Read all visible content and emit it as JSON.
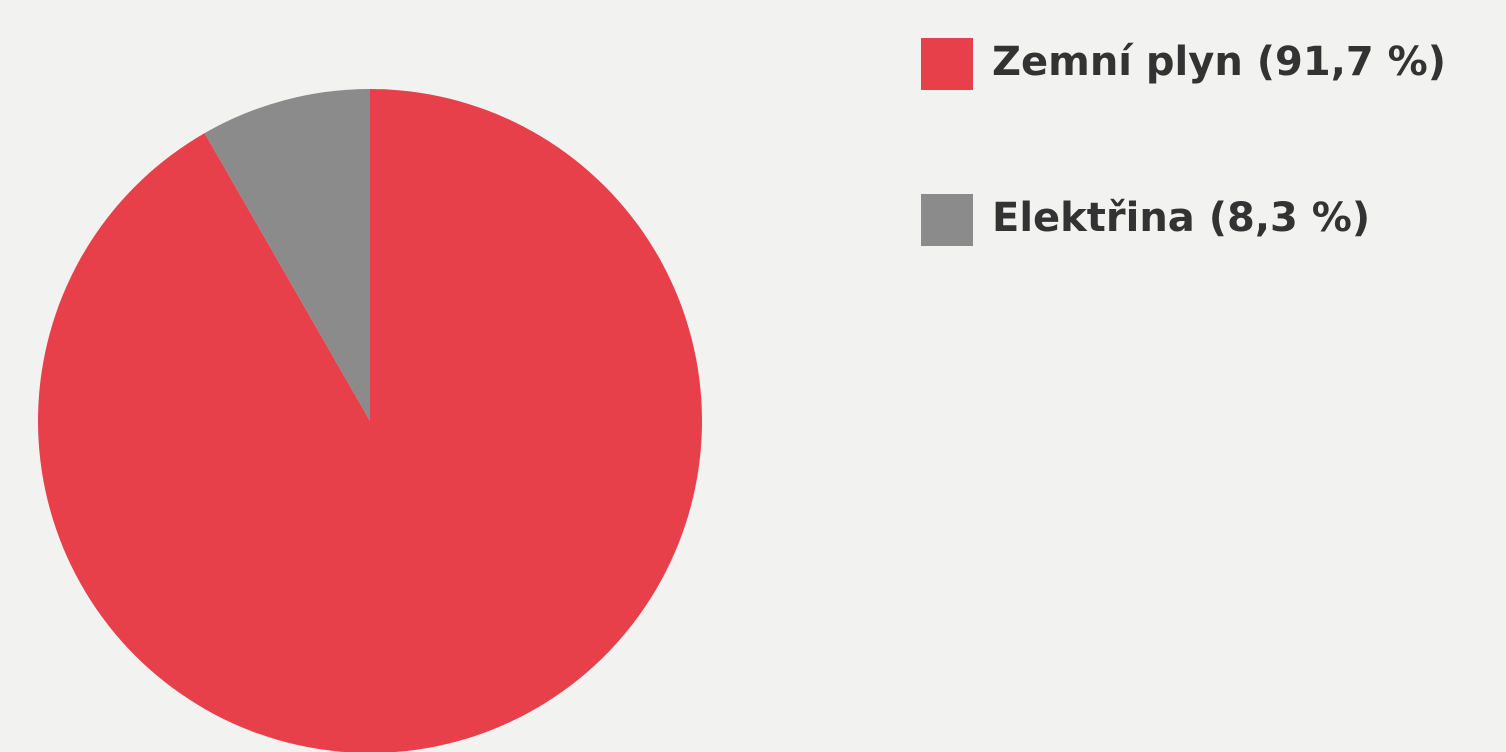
{
  "chart_data": {
    "type": "pie",
    "categories": [
      "Zemní plyn (91,7 %)",
      "Elektřina (8,3 %)"
    ],
    "values": [
      91.7,
      8.3
    ],
    "colors": [
      "#e8404b",
      "#8c8b8b"
    ]
  }
}
